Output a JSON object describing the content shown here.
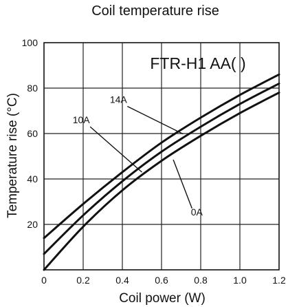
{
  "chart_data": {
    "type": "line",
    "title": "Coil temperature rise",
    "xlabel": "Coil power (W)",
    "ylabel": "Temperature rise (°C)",
    "model_label": "FTR-H1 AA(   )",
    "xlim": [
      0,
      1.2
    ],
    "ylim": [
      0,
      100
    ],
    "xticks": [
      "0",
      "0.2",
      "0.4",
      "0.6",
      "0.8",
      "1.0",
      "1.2"
    ],
    "yticks": [
      "20",
      "40",
      "60",
      "80",
      "100"
    ],
    "grid": true,
    "series": [
      {
        "name": "14A",
        "x": [
          0,
          0.2,
          0.4,
          0.6,
          0.8,
          1.0,
          1.2
        ],
        "values": [
          14,
          29,
          43,
          56,
          67,
          77,
          86
        ]
      },
      {
        "name": "10A",
        "x": [
          0,
          0.2,
          0.4,
          0.6,
          0.8,
          1.0,
          1.2
        ],
        "values": [
          7,
          24,
          39,
          52,
          63,
          73,
          82
        ]
      },
      {
        "name": "0A",
        "x": [
          0,
          0.2,
          0.4,
          0.6,
          0.8,
          1.0,
          1.2
        ],
        "values": [
          0,
          19,
          35,
          48,
          59,
          69,
          78
        ]
      }
    ],
    "annotations": [
      {
        "text": "14A",
        "x": 0.38,
        "y": 73.5,
        "target_x": 0.71,
        "target_y": 59.8
      },
      {
        "text": "10A",
        "x": 0.19,
        "y": 64.5,
        "target_x": 0.5,
        "target_y": 43
      },
      {
        "text": "0A",
        "x": 0.78,
        "y": 24,
        "target_x": 0.66,
        "target_y": 48.5
      }
    ]
  }
}
